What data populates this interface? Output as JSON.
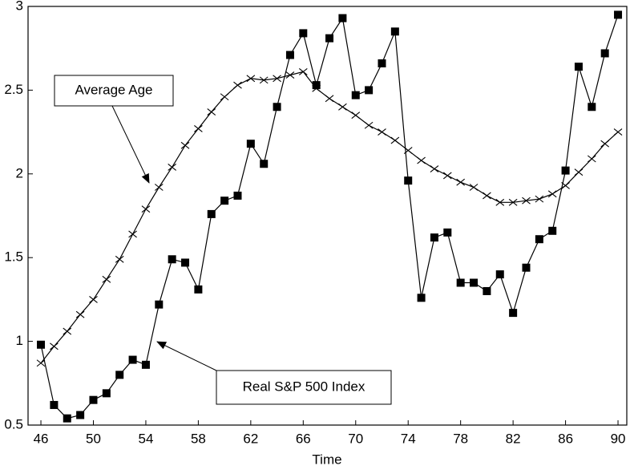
{
  "chart_data": {
    "type": "line",
    "x_label": "Time",
    "x": [
      46,
      47,
      48,
      49,
      50,
      51,
      52,
      53,
      54,
      55,
      56,
      57,
      58,
      59,
      60,
      61,
      62,
      63,
      64,
      65,
      66,
      67,
      68,
      69,
      70,
      71,
      72,
      73,
      74,
      75,
      76,
      77,
      78,
      79,
      80,
      81,
      82,
      83,
      84,
      85,
      86,
      87,
      88,
      89,
      90
    ],
    "series": [
      {
        "name": "Real S&P 500 Index",
        "color": "#000000",
        "marker": "square",
        "values": [
          0.98,
          0.62,
          0.54,
          0.56,
          0.65,
          0.69,
          0.8,
          0.89,
          0.86,
          1.22,
          1.49,
          1.47,
          1.31,
          1.76,
          1.84,
          1.87,
          2.18,
          2.06,
          2.4,
          2.71,
          2.84,
          2.53,
          2.81,
          2.93,
          2.47,
          2.5,
          2.66,
          2.85,
          1.96,
          1.26,
          1.62,
          1.65,
          1.35,
          1.35,
          1.3,
          1.4,
          1.17,
          1.44,
          1.61,
          1.66,
          2.02,
          2.64,
          2.4,
          2.72,
          2.95
        ]
      },
      {
        "name": "Average Age",
        "color": "#000000",
        "marker": "x",
        "values": [
          0.87,
          0.97,
          1.06,
          1.16,
          1.25,
          1.37,
          1.49,
          1.64,
          1.79,
          1.92,
          2.04,
          2.17,
          2.27,
          2.37,
          2.46,
          2.53,
          2.57,
          2.56,
          2.57,
          2.59,
          2.61,
          2.51,
          2.45,
          2.4,
          2.35,
          2.29,
          2.25,
          2.2,
          2.14,
          2.08,
          2.03,
          1.99,
          1.95,
          1.92,
          1.87,
          1.83,
          1.83,
          1.84,
          1.85,
          1.88,
          1.93,
          2.01,
          2.09,
          2.18,
          2.25
        ]
      }
    ],
    "xlim": [
      45.02,
      90.67
    ],
    "xticks": [
      46,
      50,
      54,
      58,
      62,
      66,
      70,
      74,
      78,
      82,
      86,
      90
    ],
    "ylim": [
      0.5,
      3
    ],
    "yticks": [
      0.5,
      1,
      1.5,
      2,
      2.5,
      3
    ],
    "grid": false
  }
}
